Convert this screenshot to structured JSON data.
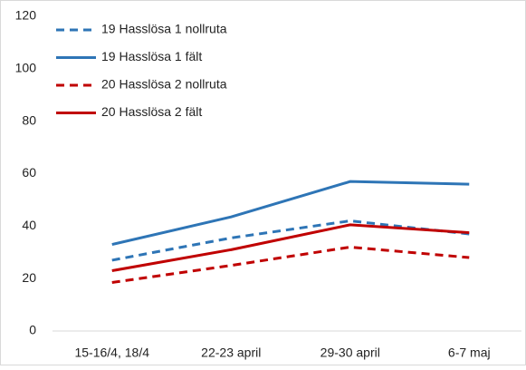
{
  "chart_data": {
    "type": "line",
    "categories": [
      "15-16/4, 18/4",
      "22-23 april",
      "29-30 april",
      "6-7 maj"
    ],
    "series": [
      {
        "name": "19 Hasslösa 1 nollruta",
        "color": "#2e75b6",
        "dashed": true,
        "values": [
          27,
          35.5,
          42,
          37
        ]
      },
      {
        "name": "19 Hasslösa 1 fält",
        "color": "#2e75b6",
        "dashed": false,
        "values": [
          33,
          43.5,
          57,
          56
        ]
      },
      {
        "name": "20 Hasslösa 2 nollruta",
        "color": "#c00000",
        "dashed": true,
        "values": [
          18.5,
          25,
          32,
          28
        ]
      },
      {
        "name": "20 Hasslösa 2 fält",
        "color": "#c00000",
        "dashed": false,
        "values": [
          23,
          31,
          40.5,
          37.5
        ]
      }
    ],
    "ylim": [
      0,
      120
    ],
    "yticks": [
      0,
      20,
      40,
      60,
      80,
      100,
      120
    ],
    "grid": false,
    "legend": "top-left"
  }
}
